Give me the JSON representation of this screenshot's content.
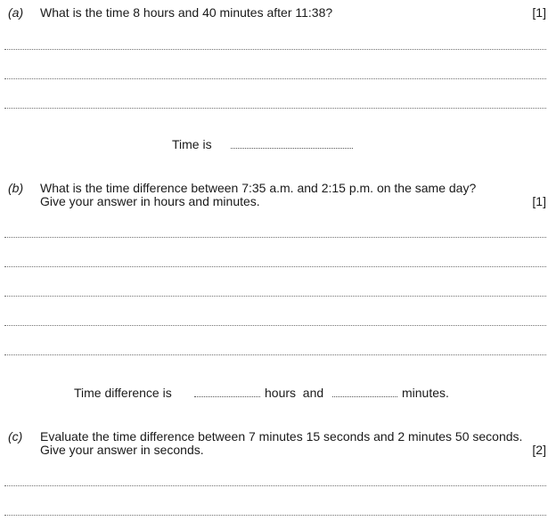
{
  "questions": [
    {
      "part": "(a)",
      "lines": [
        "What is the time 8 hours and 40 minutes after 11:38?"
      ],
      "marks": "[1]",
      "answer": {
        "prefix": "Time is"
      }
    },
    {
      "part": "(b)",
      "lines": [
        "What is the time difference between 7:35 a.m. and 2:15 p.m. on the same day?",
        "Give your answer in hours and minutes."
      ],
      "marks": "[1]",
      "answer": {
        "prefix": "Time difference is",
        "middle": "hours  and",
        "suffix": "minutes."
      }
    },
    {
      "part": "(c)",
      "lines": [
        "Evaluate the time difference between 7 minutes 15 seconds and 2 minutes 50 seconds.",
        "Give your answer in seconds."
      ],
      "marks": "[2]"
    }
  ]
}
